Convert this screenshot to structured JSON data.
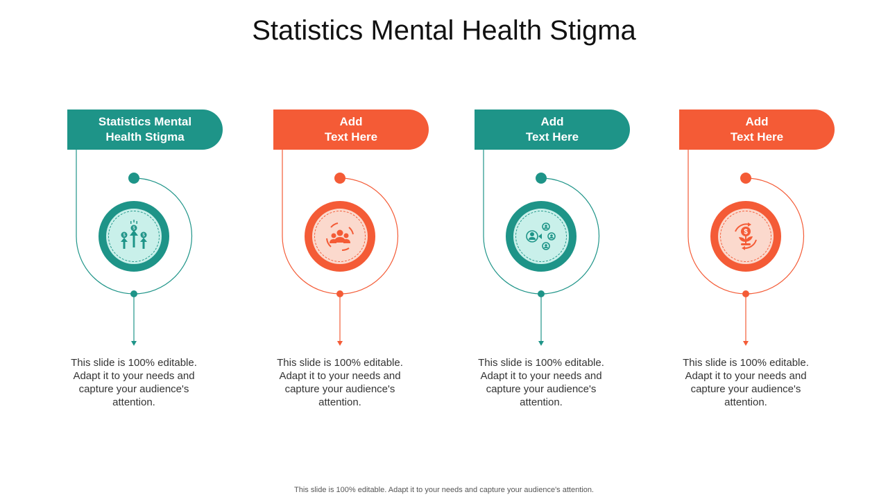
{
  "title": "Statistics Mental Health Stigma",
  "footer": "This slide is 100% editable. Adapt it to your needs and capture your audience's attention.",
  "colors": {
    "teal": "#1e9488",
    "orange": "#f45b36",
    "teal_light": "#c9f0ea",
    "orange_light": "#fbd9cd"
  },
  "items": [
    {
      "heading_line1": "Statistics Mental",
      "heading_line2": "Health Stigma",
      "icon": "money-growth-arrows-icon",
      "description": "This slide is 100% editable. Adapt it to your needs and capture your audience's attention."
    },
    {
      "heading_line1": "Add",
      "heading_line2": "Text Here",
      "icon": "team-cycle-icon",
      "description": "This slide is 100% editable. Adapt it to your needs and capture your audience's attention."
    },
    {
      "heading_line1": "Add",
      "heading_line2": "Text Here",
      "icon": "user-network-icon",
      "description": "This slide is 100% editable. Adapt it to your needs and capture your audience's attention."
    },
    {
      "heading_line1": "Add",
      "heading_line2": "Text Here",
      "icon": "money-plant-cycle-icon",
      "description": "This slide is 100% editable. Adapt it to your needs and capture your audience's attention."
    }
  ]
}
